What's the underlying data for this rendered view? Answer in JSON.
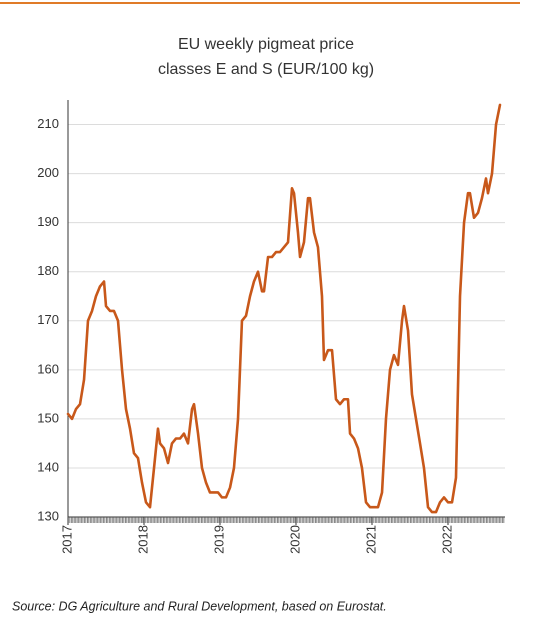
{
  "chart_data": {
    "type": "line",
    "title": [
      "EU weekly pigmeat price",
      "classes E and S (EUR/100 kg)"
    ],
    "source": "Source: DG Agriculture and Rural Development, based on Eurostat.",
    "x": [
      2017.0,
      2017.053,
      2017.105,
      2017.158,
      2017.211,
      2017.263,
      2017.316,
      2017.368,
      2017.421,
      2017.474,
      2017.5,
      2017.553,
      2017.605,
      2017.658,
      2017.711,
      2017.763,
      2017.816,
      2017.868,
      2017.921,
      2017.974,
      2018.026,
      2018.079,
      2018.132,
      2018.184,
      2018.211,
      2018.263,
      2018.316,
      2018.368,
      2018.421,
      2018.474,
      2018.526,
      2018.579,
      2018.632,
      2018.658,
      2018.711,
      2018.763,
      2018.816,
      2018.868,
      2018.921,
      2018.974,
      2019.026,
      2019.079,
      2019.132,
      2019.184,
      2019.237,
      2019.289,
      2019.342,
      2019.395,
      2019.447,
      2019.5,
      2019.553,
      2019.579,
      2019.632,
      2019.684,
      2019.737,
      2019.789,
      2019.842,
      2019.895,
      2019.947,
      2019.974,
      2020.026,
      2020.053,
      2020.105,
      2020.158,
      2020.184,
      2020.237,
      2020.289,
      2020.342,
      2020.368,
      2020.421,
      2020.474,
      2020.526,
      2020.579,
      2020.632,
      2020.684,
      2020.711,
      2020.763,
      2020.816,
      2020.868,
      2020.921,
      2020.974,
      2021.026,
      2021.079,
      2021.132,
      2021.184,
      2021.237,
      2021.289,
      2021.342,
      2021.395,
      2021.421,
      2021.474,
      2021.526,
      2021.579,
      2021.632,
      2021.684,
      2021.737,
      2021.789,
      2021.842,
      2021.895,
      2021.947,
      2022.0,
      2022.053,
      2022.105,
      2022.158,
      2022.211,
      2022.263,
      2022.289,
      2022.342,
      2022.395,
      2022.447,
      2022.5,
      2022.526,
      2022.579,
      2022.632,
      2022.684
    ],
    "series": [
      {
        "color": "#c8581a",
        "values": [
          151,
          150,
          152,
          153,
          158,
          170,
          172,
          175,
          177,
          178,
          173,
          172,
          172,
          170,
          160,
          152,
          148,
          143,
          142,
          137,
          133,
          132,
          140,
          148,
          145,
          144,
          141,
          145,
          146,
          146,
          147,
          145,
          152,
          153,
          147,
          140,
          137,
          135,
          135,
          135,
          134,
          134,
          136,
          140,
          150,
          170,
          171,
          175,
          178,
          180,
          176,
          176,
          183,
          183,
          184,
          184,
          185,
          186,
          197,
          196,
          188,
          183,
          186,
          195,
          195,
          188,
          185,
          175,
          162,
          164,
          164,
          154,
          153,
          154,
          154,
          147,
          146,
          144,
          140,
          133,
          132,
          132,
          132,
          135,
          150,
          160,
          163,
          161,
          170,
          173,
          168,
          155,
          150,
          145,
          140,
          132,
          131,
          131,
          133,
          134,
          133,
          133,
          138,
          175,
          190,
          196,
          196,
          191,
          192,
          195,
          199,
          196,
          200,
          210,
          214
        ]
      }
    ],
    "xlim": [
      2017,
      2022.75
    ],
    "xticks": [
      2017,
      2018,
      2019,
      2020,
      2021,
      2022
    ],
    "ylim": [
      130,
      215
    ],
    "yticks": [
      130,
      140,
      150,
      160,
      170,
      180,
      190,
      200,
      210
    ],
    "grid": true
  }
}
